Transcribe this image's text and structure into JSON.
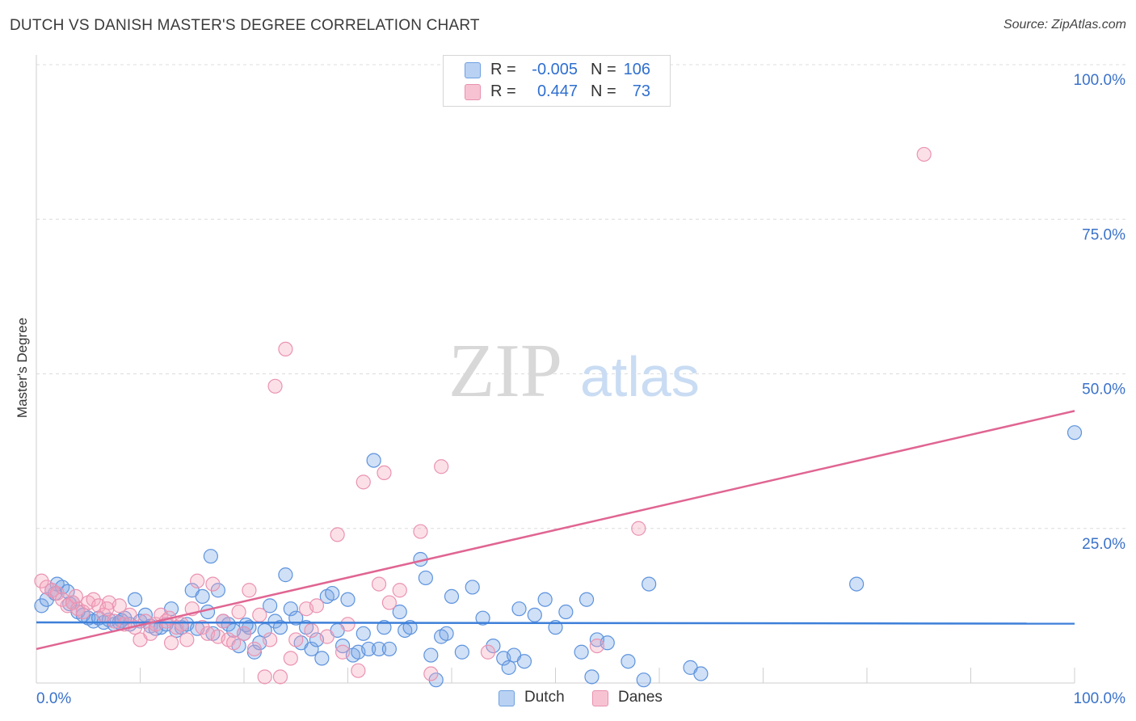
{
  "title": "DUTCH VS DANISH MASTER'S DEGREE CORRELATION CHART",
  "source": "Source: ZipAtlas.com",
  "watermark": {
    "zip": "ZIP",
    "atlas": "atlas"
  },
  "legend": {
    "rows": [
      {
        "r_label": "R =",
        "r_value": "-0.005",
        "n_label": "N =",
        "n_value": "106",
        "color": "#6ea0e0",
        "fill": "#b9d2f3"
      },
      {
        "r_label": "R =",
        "r_value": "0.447",
        "n_label": "N =",
        "n_value": "73",
        "color": "#e890ae",
        "fill": "#f7c3d3"
      }
    ]
  },
  "bottom_legend": [
    {
      "label": "Dutch",
      "color": "#6ea0e0",
      "fill": "#b9d2f3"
    },
    {
      "label": "Danes",
      "color": "#e890ae",
      "fill": "#f7c3d3"
    }
  ],
  "chart_data": {
    "type": "scatter",
    "title": "DUTCH VS DANISH MASTER'S DEGREE CORRELATION CHART",
    "xlabel": "",
    "ylabel": "Master's Degree",
    "xlim": [
      0,
      100
    ],
    "ylim": [
      0,
      100
    ],
    "x_tick_labels": [
      "0.0%",
      "100.0%"
    ],
    "y_tick_labels": [
      "100.0%",
      "75.0%",
      "50.0%",
      "25.0%"
    ],
    "y_ticks": [
      100,
      75,
      50,
      25
    ],
    "grid": "horizontal dashed",
    "legend_position": "top-center",
    "colors": {
      "dutch": "#3d7fd9",
      "danes": "#e06592"
    },
    "series": [
      {
        "name": "Dutch",
        "trend": {
          "x": [
            0,
            100
          ],
          "y": [
            9.8,
            9.6
          ]
        },
        "points": [
          [
            0.5,
            12.5
          ],
          [
            1.0,
            13.5
          ],
          [
            1.5,
            15.0
          ],
          [
            1.8,
            14.5
          ],
          [
            2.0,
            16.0
          ],
          [
            2.5,
            15.5
          ],
          [
            3.0,
            14.8
          ],
          [
            3.5,
            13.0
          ],
          [
            3.2,
            12.8
          ],
          [
            4.0,
            11.5
          ],
          [
            4.5,
            11.0
          ],
          [
            5.0,
            10.5
          ],
          [
            5.5,
            10.0
          ],
          [
            6.0,
            10.5
          ],
          [
            6.5,
            9.8
          ],
          [
            7.0,
            10.2
          ],
          [
            7.5,
            9.5
          ],
          [
            8.0,
            9.8
          ],
          [
            8.5,
            10.5
          ],
          [
            9.0,
            9.5
          ],
          [
            9.5,
            13.5
          ],
          [
            10.0,
            10.0
          ],
          [
            10.5,
            11.0
          ],
          [
            11.0,
            9.2
          ],
          [
            11.5,
            8.8
          ],
          [
            12.0,
            9.0
          ],
          [
            12.5,
            9.5
          ],
          [
            13.0,
            12.0
          ],
          [
            13.5,
            8.5
          ],
          [
            14.0,
            9.0
          ],
          [
            14.5,
            9.5
          ],
          [
            15.0,
            15.0
          ],
          [
            15.5,
            8.8
          ],
          [
            16.0,
            14.0
          ],
          [
            16.5,
            11.5
          ],
          [
            16.8,
            20.5
          ],
          [
            17.0,
            8.0
          ],
          [
            17.5,
            15.0
          ],
          [
            18.0,
            10.0
          ],
          [
            18.5,
            9.5
          ],
          [
            19.0,
            8.5
          ],
          [
            19.5,
            6.0
          ],
          [
            20.0,
            8.0
          ],
          [
            20.5,
            9.0
          ],
          [
            21.0,
            5.0
          ],
          [
            21.5,
            6.5
          ],
          [
            22.0,
            8.5
          ],
          [
            22.5,
            12.5
          ],
          [
            23.0,
            10.0
          ],
          [
            23.5,
            9.0
          ],
          [
            24.0,
            17.5
          ],
          [
            24.5,
            12.0
          ],
          [
            25.0,
            10.5
          ],
          [
            25.5,
            6.5
          ],
          [
            26.0,
            9.0
          ],
          [
            26.5,
            5.5
          ],
          [
            27.0,
            7.0
          ],
          [
            27.5,
            4.0
          ],
          [
            28.0,
            14.0
          ],
          [
            28.5,
            14.5
          ],
          [
            29.0,
            8.5
          ],
          [
            29.5,
            6.0
          ],
          [
            30.0,
            13.5
          ],
          [
            30.5,
            4.5
          ],
          [
            31.0,
            5.0
          ],
          [
            31.5,
            8.0
          ],
          [
            32.0,
            5.5
          ],
          [
            32.5,
            36.0
          ],
          [
            33.0,
            5.5
          ],
          [
            34.0,
            5.5
          ],
          [
            35.0,
            11.5
          ],
          [
            35.5,
            8.5
          ],
          [
            36.0,
            9.0
          ],
          [
            37.0,
            20.0
          ],
          [
            37.5,
            17.0
          ],
          [
            38.0,
            4.5
          ],
          [
            38.5,
            0.5
          ],
          [
            39.0,
            7.5
          ],
          [
            39.5,
            8.0
          ],
          [
            40.0,
            14.0
          ],
          [
            41.0,
            5.0
          ],
          [
            42.0,
            15.5
          ],
          [
            43.0,
            10.5
          ],
          [
            44.0,
            6.0
          ],
          [
            45.0,
            4.0
          ],
          [
            45.5,
            2.5
          ],
          [
            46.0,
            4.5
          ],
          [
            46.5,
            12.0
          ],
          [
            47.0,
            3.5
          ],
          [
            48.0,
            11.0
          ],
          [
            49.0,
            13.5
          ],
          [
            50.0,
            9.0
          ],
          [
            51.0,
            11.5
          ],
          [
            52.5,
            5.0
          ],
          [
            53.0,
            13.5
          ],
          [
            53.5,
            1.0
          ],
          [
            54.0,
            7.0
          ],
          [
            55.0,
            6.5
          ],
          [
            57.0,
            3.5
          ],
          [
            58.5,
            0.5
          ],
          [
            59.0,
            16.0
          ],
          [
            63.0,
            2.5
          ],
          [
            64.0,
            1.5
          ],
          [
            79.0,
            16.0
          ],
          [
            100.0,
            40.5
          ],
          [
            8.2,
            10.1
          ],
          [
            20.2,
            9.4
          ],
          [
            33.5,
            9.0
          ]
        ]
      },
      {
        "name": "Danes",
        "trend": {
          "x": [
            0,
            100
          ],
          "y": [
            5.5,
            44.0
          ]
        },
        "points": [
          [
            0.5,
            16.5
          ],
          [
            1.0,
            15.5
          ],
          [
            1.5,
            15.0
          ],
          [
            2.0,
            14.5
          ],
          [
            2.5,
            13.5
          ],
          [
            3.0,
            12.5
          ],
          [
            3.5,
            13.0
          ],
          [
            4.0,
            12.0
          ],
          [
            4.5,
            11.5
          ],
          [
            5.0,
            13.0
          ],
          [
            5.5,
            13.5
          ],
          [
            6.0,
            12.5
          ],
          [
            6.5,
            11.0
          ],
          [
            7.0,
            13.0
          ],
          [
            7.5,
            10.0
          ],
          [
            8.0,
            12.5
          ],
          [
            8.5,
            9.5
          ],
          [
            9.0,
            11.0
          ],
          [
            9.5,
            9.0
          ],
          [
            10.0,
            7.0
          ],
          [
            10.5,
            10.0
          ],
          [
            11.0,
            8.0
          ],
          [
            11.5,
            9.5
          ],
          [
            12.0,
            11.0
          ],
          [
            12.5,
            10.0
          ],
          [
            13.0,
            6.5
          ],
          [
            13.5,
            9.0
          ],
          [
            14.0,
            9.5
          ],
          [
            14.5,
            7.0
          ],
          [
            15.0,
            12.0
          ],
          [
            15.5,
            16.5
          ],
          [
            16.0,
            9.0
          ],
          [
            16.5,
            8.0
          ],
          [
            17.0,
            16.0
          ],
          [
            17.5,
            7.5
          ],
          [
            18.0,
            10.0
          ],
          [
            18.5,
            7.0
          ],
          [
            19.0,
            6.5
          ],
          [
            19.5,
            11.5
          ],
          [
            20.0,
            8.0
          ],
          [
            20.5,
            15.0
          ],
          [
            21.0,
            5.5
          ],
          [
            21.5,
            11.0
          ],
          [
            22.0,
            1.0
          ],
          [
            22.5,
            7.0
          ],
          [
            23.0,
            48.0
          ],
          [
            23.5,
            1.0
          ],
          [
            24.0,
            54.0
          ],
          [
            24.5,
            4.0
          ],
          [
            25.0,
            7.0
          ],
          [
            26.0,
            12.0
          ],
          [
            26.5,
            8.5
          ],
          [
            27.0,
            12.5
          ],
          [
            28.0,
            7.5
          ],
          [
            29.0,
            24.0
          ],
          [
            29.5,
            5.0
          ],
          [
            30.0,
            9.5
          ],
          [
            31.0,
            2.0
          ],
          [
            31.5,
            32.5
          ],
          [
            33.0,
            16.0
          ],
          [
            33.5,
            34.0
          ],
          [
            34.0,
            13.0
          ],
          [
            35.0,
            15.0
          ],
          [
            37.0,
            24.5
          ],
          [
            38.0,
            1.5
          ],
          [
            39.0,
            35.0
          ],
          [
            43.5,
            5.0
          ],
          [
            54.0,
            6.0
          ],
          [
            58.0,
            25.0
          ],
          [
            85.5,
            85.5
          ],
          [
            3.8,
            14.0
          ],
          [
            6.8,
            12.0
          ],
          [
            12.8,
            10.5
          ]
        ]
      }
    ]
  }
}
